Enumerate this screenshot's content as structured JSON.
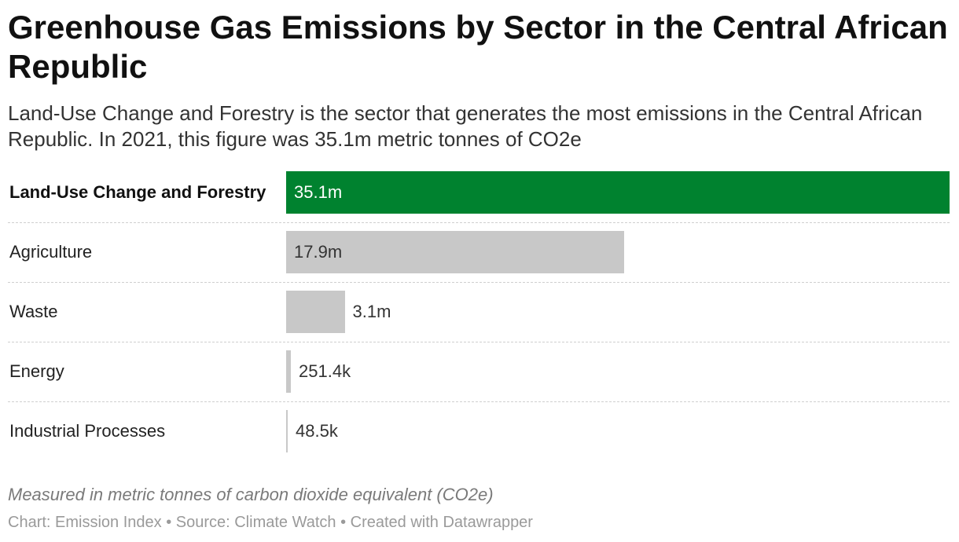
{
  "chart_data": {
    "type": "bar",
    "orientation": "horizontal",
    "title": "Greenhouse Gas Emissions by Sector in the Central African Republic",
    "subtitle": "Land-Use Change and Forestry is the sector that generates the most emissions in the Central African Republic. In 2021, this figure was 35.1m metric tonnes of CO2e",
    "categories": [
      "Land-Use Change and Forestry",
      "Agriculture",
      "Waste",
      "Energy",
      "Industrial Processes"
    ],
    "values": [
      35100000,
      17900000,
      3100000,
      251400,
      48500
    ],
    "value_labels": [
      "35.1m",
      "17.9m",
      "3.1m",
      "251.4k",
      "48.5k"
    ],
    "highlighted": [
      true,
      false,
      false,
      false,
      false
    ],
    "xlim": [
      0,
      35100000
    ],
    "grid": false,
    "note": "Measured in metric tonnes of carbon dioxide equivalent (CO2e)",
    "footer": "Chart: Emission Index • Source: Climate Watch • Created with Datawrapper",
    "colors": {
      "highlight": "#00822f",
      "default": "#c8c8c8"
    }
  }
}
